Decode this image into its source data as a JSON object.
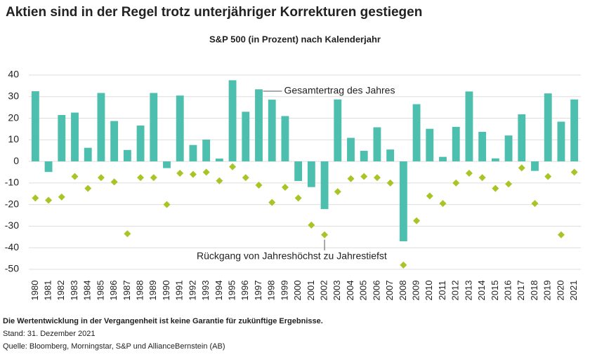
{
  "chart_data": {
    "type": "bar",
    "title": "Aktien sind in der Regel trotz unterjähriger Korrekturen gestiegen",
    "subtitle": "S&P 500 (in Prozent) nach Kalenderjahr",
    "categories": [
      "1980",
      "1981",
      "1982",
      "1983",
      "1984",
      "1985",
      "1986",
      "1987",
      "1988",
      "1989",
      "1990",
      "1991",
      "1992",
      "1993",
      "1994",
      "1995",
      "1996",
      "1997",
      "1998",
      "1999",
      "2000",
      "2001",
      "2002",
      "2003",
      "2004",
      "2005",
      "2006",
      "2007",
      "2008",
      "2009",
      "2010",
      "2011",
      "2012",
      "2013",
      "2014",
      "2015",
      "2016",
      "2017",
      "2018",
      "2019",
      "2020",
      "2021"
    ],
    "series": [
      {
        "type": "bar",
        "color": "#4dbfae",
        "values": [
          32.5,
          -4.9,
          21.5,
          22.6,
          6.3,
          31.7,
          18.7,
          5.3,
          16.6,
          31.7,
          -3.1,
          30.5,
          7.6,
          10.1,
          1.3,
          37.6,
          23.0,
          33.4,
          28.6,
          21.0,
          -9.1,
          -11.9,
          -22.1,
          28.7,
          10.9,
          4.9,
          15.8,
          5.5,
          -37.0,
          26.5,
          15.1,
          2.1,
          16.0,
          32.4,
          13.7,
          1.4,
          12.0,
          21.8,
          -4.4,
          31.5,
          18.4,
          28.7
        ]
      },
      {
        "type": "scatter",
        "color": "#a8c526",
        "values": [
          -17,
          -18,
          -16.5,
          -7,
          -12.5,
          -7.5,
          -9.5,
          -33.5,
          -7.5,
          -7.5,
          -20,
          -5.5,
          -6,
          -5,
          -9,
          -2.5,
          -7.5,
          -11,
          -19,
          -12,
          -17,
          -29.5,
          -34,
          -14,
          -8,
          -7,
          -7.5,
          -10,
          -48,
          -27.5,
          -16,
          -19.5,
          -10,
          -5.5,
          -7.5,
          -12.5,
          -10.5,
          -3,
          -19.5,
          -7,
          -34,
          -5
        ]
      }
    ],
    "annotations": [
      "Gesamtertrag des Jahres",
      "Rückgang von Jahreshöchst zu Jahrestiefst"
    ],
    "ylim": [
      -50,
      40
    ],
    "yticks": [
      -50,
      -40,
      -30,
      -20,
      -10,
      0,
      10,
      20,
      30,
      40
    ],
    "grid": true
  },
  "footer": {
    "disclaimer": "Die Wertentwicklung in der Vergangenheit ist keine Garantie für zukünftige Ergebnisse.",
    "date": "Stand: 31. Dezember 2021",
    "source": "Quelle: Bloomberg, Morningstar, S&P und AllianceBernstein (AB)"
  }
}
